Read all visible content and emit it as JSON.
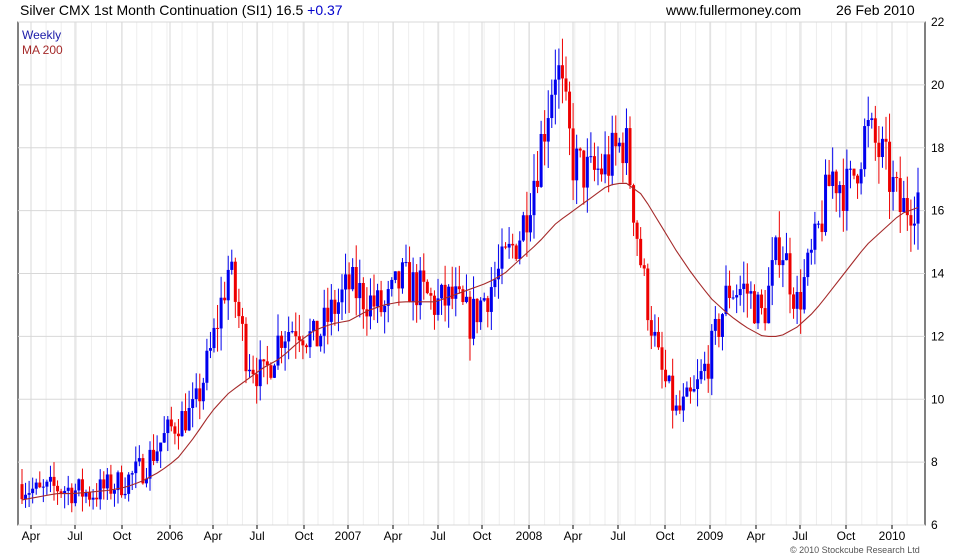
{
  "header": {
    "title": "Silver CMX 1st Month Continuation (SI1) 16.5",
    "change": "+0.37",
    "site": "www.fullermoney.com",
    "date": "26 Feb 2010"
  },
  "legend": {
    "candles": "Weekly",
    "ma": "MA 200"
  },
  "footer": {
    "copyright": "© 2010 Stockcube Research Ltd"
  },
  "chart_data": {
    "type": "candlestick",
    "frequency": "weekly",
    "x_ticks": [
      "Apr",
      "Jul",
      "Oct",
      "2006",
      "Apr",
      "Jul",
      "Oct",
      "2007",
      "Apr",
      "Jul",
      "Oct",
      "2008",
      "Apr",
      "Jul",
      "Oct",
      "2009",
      "Apr",
      "Jul",
      "Oct",
      "2010"
    ],
    "y_ticks": [
      6,
      8,
      10,
      12,
      14,
      16,
      18,
      20,
      22
    ],
    "ylim": [
      6,
      22
    ],
    "y_axis_side": "right",
    "grid": true,
    "colors": {
      "up": "#0000ee",
      "down": "#ee0000",
      "ma": "#a52a2a",
      "grid": "#dddddd"
    },
    "close_path_monthly": [
      7.3,
      7.0,
      7.2,
      7.1,
      7.0,
      7.2,
      7.4,
      7.8,
      8.6,
      9.3,
      9.6,
      11.6,
      14.2,
      11.5,
      10.6,
      12.1,
      12.4,
      11.8,
      12.8,
      13.6,
      13.2,
      12.8,
      13.8,
      13.5,
      13.0,
      13.2,
      12.5,
      13.4,
      14.3,
      15.4,
      17.8,
      20.8,
      17.5,
      17.1,
      17.5,
      18.3,
      14.0,
      11.0,
      9.5,
      10.1,
      11.5,
      13.5,
      13.5,
      12.6,
      15.1,
      13.0,
      14.8,
      17.2,
      16.6,
      18.6,
      17.6,
      16.0,
      16.5
    ],
    "ma_path_monthly": [
      6.8,
      6.9,
      7.0,
      7.0,
      7.05,
      7.1,
      7.2,
      7.4,
      7.7,
      8.1,
      8.8,
      9.6,
      10.2,
      10.6,
      11.0,
      11.3,
      11.8,
      12.2,
      12.4,
      12.5,
      12.8,
      13.0,
      13.1,
      13.1,
      13.1,
      13.3,
      13.5,
      13.7,
      14.0,
      14.5,
      15.0,
      15.6,
      16.0,
      16.4,
      16.8,
      16.9,
      16.5,
      15.6,
      14.7,
      13.9,
      13.2,
      12.7,
      12.3,
      12.0,
      12.0,
      12.3,
      12.8,
      13.5,
      14.2,
      14.9,
      15.4,
      15.9,
      16.1
    ]
  }
}
